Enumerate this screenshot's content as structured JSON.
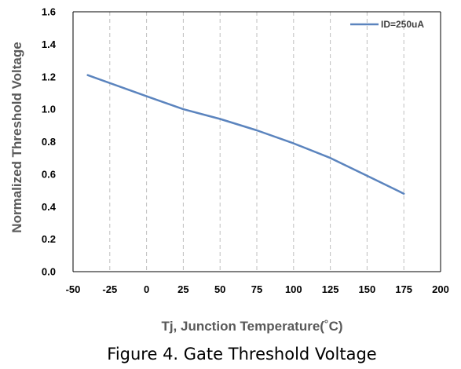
{
  "figure_caption": "Figure 4. Gate Threshold Voltage",
  "colors": {
    "series": "#5B84BE",
    "grid": "#BFBFBF",
    "axis_title": "#595959",
    "tick_text": "#000000"
  },
  "chart_data": {
    "type": "line",
    "title": "",
    "xlabel": "Tj, Junction Temperature(˚C)",
    "ylabel": "Normalized Threshold Voltage",
    "xlim": [
      -50,
      200
    ],
    "ylim": [
      0,
      1.6
    ],
    "x_ticks": [
      "-50",
      "-25",
      "0",
      "25",
      "50",
      "75",
      "100",
      "125",
      "150",
      "175",
      "200"
    ],
    "y_ticks": [
      "0.0",
      "0.2",
      "0.4",
      "0.6",
      "0.8",
      "1.0",
      "1.2",
      "1.4",
      "1.6"
    ],
    "grid": "vertical-dashed",
    "legend_position": "top-right",
    "series": [
      {
        "name": "ID=250uA",
        "x": [
          -40,
          0,
          25,
          50,
          75,
          100,
          125,
          150,
          175
        ],
        "y": [
          1.21,
          1.08,
          1.0,
          0.94,
          0.87,
          0.79,
          0.7,
          0.59,
          0.48
        ]
      }
    ]
  }
}
